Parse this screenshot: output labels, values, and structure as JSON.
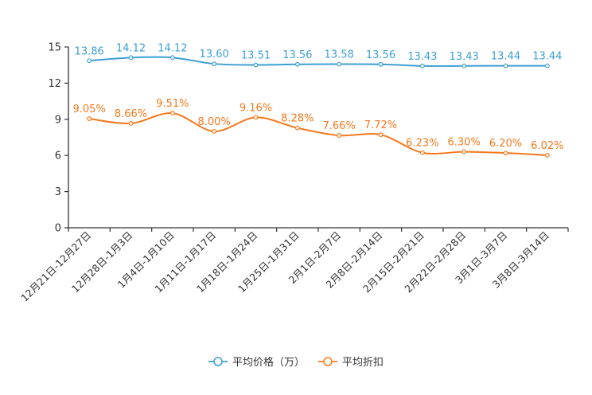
{
  "chart_data": {
    "type": "line",
    "title": "",
    "xlabel": "",
    "ylabel": "",
    "ylim": [
      0,
      15
    ],
    "yticks": [
      0,
      3,
      6,
      9,
      12,
      15
    ],
    "grid": false,
    "legend_position": "bottom-center",
    "categories": [
      "12月21日-12月27日",
      "12月28日-1月3日",
      "1月4日-1月10日",
      "1月11日-1月17日",
      "1月18日-1月24日",
      "1月25日-1月31日",
      "2月1日-2月7日",
      "2月8日-2月14日",
      "2月15日-2月21日",
      "2月22日-2月28日",
      "3月1日-3月7日",
      "3月8日-3月14日"
    ],
    "series": [
      {
        "name": "平均价格（万）",
        "color": "#3d9fd3",
        "values": [
          13.86,
          14.12,
          14.12,
          13.6,
          13.51,
          13.56,
          13.58,
          13.56,
          13.43,
          13.43,
          13.44,
          13.44
        ],
        "labels": [
          "13.86",
          "14.12",
          "14.12",
          "13.60",
          "13.51",
          "13.56",
          "13.58",
          "13.56",
          "13.43",
          "13.43",
          "13.44",
          "13.44"
        ]
      },
      {
        "name": "平均折扣",
        "color": "#f5781c",
        "values": [
          9.05,
          8.66,
          9.51,
          8.0,
          9.16,
          8.28,
          7.66,
          7.72,
          6.23,
          6.3,
          6.2,
          6.02
        ],
        "labels": [
          "9.05%",
          "8.66%",
          "9.51%",
          "8.00%",
          "9.16%",
          "8.28%",
          "7.66%",
          "7.72%",
          "6.23%",
          "6.30%",
          "6.20%",
          "6.02%"
        ]
      }
    ]
  }
}
